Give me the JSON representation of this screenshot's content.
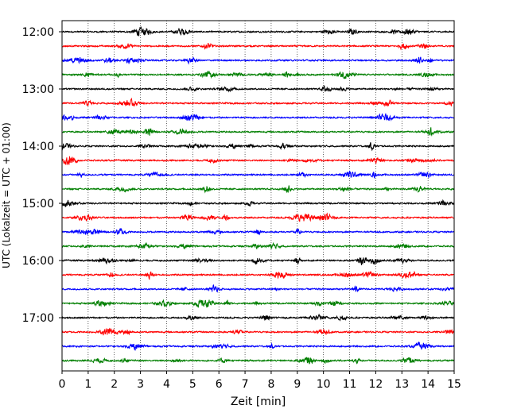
{
  "chart_data": {
    "type": "line",
    "xlabel": "Zeit  [min]",
    "ylabel": "UTC (Lokalzeit = UTC + 01:00)",
    "xlim": [
      0,
      15
    ],
    "x_ticks": [
      0,
      1,
      2,
      3,
      4,
      5,
      6,
      7,
      8,
      9,
      10,
      11,
      12,
      13,
      14,
      15
    ],
    "x_tick_labels": [
      "0",
      "1",
      "2",
      "3",
      "4",
      "5",
      "6",
      "7",
      "8",
      "9",
      "10",
      "11",
      "12",
      "13",
      "14",
      "15"
    ],
    "y_tick_labels": [
      "12:00",
      "13:00",
      "14:00",
      "15:00",
      "16:00",
      "17:00"
    ],
    "trace_start_times": [
      "12:00",
      "12:15",
      "12:30",
      "12:45",
      "13:00",
      "13:15",
      "13:30",
      "13:45",
      "14:00",
      "14:15",
      "14:30",
      "14:45",
      "15:00",
      "15:15",
      "15:30",
      "15:45",
      "16:00",
      "16:15",
      "16:30",
      "16:45",
      "17:00",
      "17:15",
      "17:30",
      "17:45"
    ],
    "trace_minutes_per_row": 15,
    "trace_colors": [
      "#000000",
      "#ff0000",
      "#0000ff",
      "#007f00"
    ],
    "grid": "vertical dotted lines at each minute"
  }
}
